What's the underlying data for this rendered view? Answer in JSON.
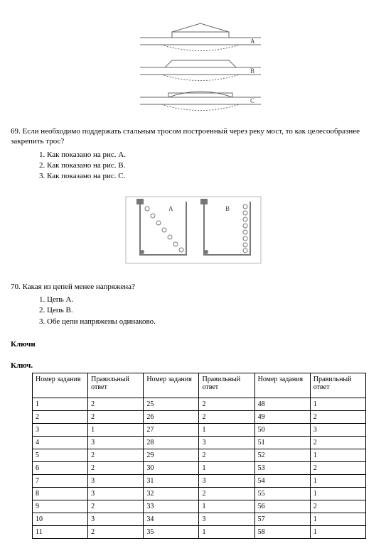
{
  "figure1": {
    "labels": {
      "a": "A",
      "b": "B",
      "c": "C"
    },
    "line_color": "#666666",
    "fill_color": "#ffffff"
  },
  "q69": {
    "text": "69. Если необходимо поддержать стальным тросом построенный через реку мост, то как целесообразнее закрепить трос?",
    "opt1": "1. Как показано на рис. А.",
    "opt2": "2. Как показано на рис. В.",
    "opt3": "3. Как показано на рис. С."
  },
  "figure2": {
    "labels": {
      "a": "A",
      "b": "B"
    },
    "line_color": "#777777"
  },
  "q70": {
    "text": "70. Какая из цепей менее напряжена?",
    "opt1": "1. Цепь А.",
    "opt2": "2. Цепь В.",
    "opt3": "3. Обе цепи напряжены одинаково."
  },
  "keys": {
    "heading1": "Ключи",
    "heading2": "Ключ.",
    "col_num": "Номер задания",
    "col_ans": "Правильный ответ",
    "rows": [
      [
        "1",
        "2",
        "25",
        "2",
        "48",
        "1"
      ],
      [
        "2",
        "2",
        "26",
        "2",
        "49",
        "2"
      ],
      [
        "3",
        "1",
        "27",
        "1",
        "50",
        "3"
      ],
      [
        "4",
        "3",
        "28",
        "3",
        "51",
        "2"
      ],
      [
        "5",
        "2",
        "29",
        "2",
        "52",
        "1"
      ],
      [
        "6",
        "2",
        "30",
        "1",
        "53",
        "2"
      ],
      [
        "7",
        "3",
        "31",
        "3",
        "54",
        "1"
      ],
      [
        "8",
        "3",
        "32",
        "2",
        "55",
        "1"
      ],
      [
        "9",
        "2",
        "33",
        "1",
        "56",
        "2"
      ],
      [
        "10",
        "3",
        "34",
        "3",
        "57",
        "1"
      ],
      [
        "11",
        "2",
        "35",
        "1",
        "58",
        "1"
      ]
    ]
  }
}
